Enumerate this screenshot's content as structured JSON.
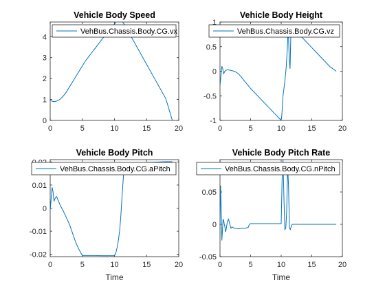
{
  "chart_data": [
    {
      "type": "line",
      "title": "Vehicle Body Speed",
      "xlabel": "",
      "ylabel": "",
      "xlim": [
        0,
        20
      ],
      "ylim": [
        0,
        4.7
      ],
      "xticks": [
        0,
        5,
        10,
        15,
        20
      ],
      "xticklabels": [
        "0",
        "5",
        "10",
        "15",
        "20"
      ],
      "yticks": [
        0,
        1,
        2,
        3,
        4
      ],
      "yticklabels": [
        "0",
        "1",
        "2",
        "3",
        "4"
      ],
      "legend_position": "top-right",
      "color": "#0072BD",
      "series": [
        {
          "name": "VehBus.Chassis.Body.CG.vx",
          "x": [
            0,
            0.5,
            1,
            1.5,
            2,
            2.5,
            3,
            3.5,
            4,
            4.5,
            5,
            5.5,
            6,
            6.5,
            7,
            7.5,
            8,
            8.5,
            9,
            9.5,
            10,
            10.3,
            10.6,
            10.9,
            11.2,
            11.5,
            12,
            13,
            14,
            15,
            16,
            17,
            18,
            19
          ],
          "y": [
            0.95,
            0.9,
            0.92,
            1.0,
            1.15,
            1.35,
            1.6,
            1.85,
            2.1,
            2.35,
            2.6,
            2.85,
            3.05,
            3.25,
            3.45,
            3.65,
            3.85,
            4.05,
            4.25,
            4.45,
            4.6,
            4.72,
            4.78,
            4.78,
            4.72,
            4.6,
            4.33,
            3.78,
            3.23,
            2.68,
            2.13,
            1.58,
            1.03,
            0.0
          ]
        }
      ]
    },
    {
      "type": "line",
      "title": "Vehicle Body Height",
      "xlabel": "",
      "ylabel": "",
      "xlim": [
        0,
        20
      ],
      "ylim": [
        -1,
        1
      ],
      "xticks": [
        0,
        5,
        10,
        15,
        20
      ],
      "xticklabels": [
        "0",
        "5",
        "10",
        "15",
        "20"
      ],
      "yticks": [
        -1,
        -0.5,
        0,
        0.5,
        1
      ],
      "yticklabels": [
        "-1",
        "-0.5",
        "0",
        "0.5",
        "1"
      ],
      "legend_position": "top-right",
      "color": "#0072BD",
      "series": [
        {
          "name": "VehBus.Chassis.Body.CG.vz",
          "x": [
            0,
            0.15,
            0.3,
            0.45,
            0.6,
            0.8,
            1.0,
            1.3,
            1.6,
            2.0,
            2.5,
            3.0,
            3.5,
            4.0,
            5.0,
            6.0,
            7.0,
            8.0,
            9.0,
            10.0,
            10.1,
            10.3,
            10.6,
            10.8,
            11.0,
            11.15,
            11.3,
            11.45,
            11.6,
            11.8,
            12.0,
            13.0,
            14.0,
            15.0,
            16.0,
            17.0,
            18.0,
            19.0
          ],
          "y": [
            -0.3,
            -0.1,
            0.1,
            0.05,
            -0.05,
            0.0,
            0.02,
            0.03,
            0.02,
            0.01,
            -0.01,
            -0.05,
            -0.12,
            -0.2,
            -0.35,
            -0.48,
            -0.61,
            -0.74,
            -0.87,
            -1.0,
            -0.9,
            -0.5,
            -0.2,
            0.05,
            0.45,
            0.92,
            0.3,
            0.05,
            0.85,
            0.88,
            0.87,
            0.74,
            0.61,
            0.48,
            0.35,
            0.22,
            0.09,
            0.0
          ]
        }
      ]
    },
    {
      "type": "line",
      "title": "Vehicle Body Pitch",
      "xlabel": "Time",
      "ylabel": "",
      "xlim": [
        0,
        20
      ],
      "ylim": [
        -0.021,
        0.021
      ],
      "xticks": [
        0,
        5,
        10,
        15,
        20
      ],
      "xticklabels": [
        "0",
        "5",
        "10",
        "15",
        "20"
      ],
      "yticks": [
        -0.02,
        -0.01,
        0,
        0.01,
        0.02
      ],
      "yticklabels": [
        "-0.02",
        "-0.01",
        "0",
        "0.01",
        "0.02"
      ],
      "legend_position": "top-right",
      "color": "#0072BD",
      "series": [
        {
          "name": "VehBus.Chassis.Body.CG.aPitch",
          "x": [
            0,
            0.15,
            0.3,
            0.45,
            0.6,
            0.8,
            1.0,
            1.3,
            1.6,
            2.0,
            2.5,
            3.0,
            3.5,
            4.0,
            4.5,
            5.0,
            5.5,
            6.0,
            7.0,
            8.0,
            9.0,
            10.0,
            10.2,
            10.5,
            10.8,
            11.0,
            11.2,
            11.4,
            11.6,
            11.8,
            12,
            13,
            14,
            15,
            16,
            17,
            18,
            19
          ],
          "y": [
            -0.001,
            0.004,
            0.009,
            0.007,
            0.003,
            0.0045,
            0.005,
            0.003,
            0.001,
            -0.001,
            -0.004,
            -0.007,
            -0.011,
            -0.015,
            -0.018,
            -0.0205,
            -0.0205,
            -0.0205,
            -0.0205,
            -0.0206,
            -0.0206,
            -0.0206,
            -0.0195,
            -0.016,
            -0.01,
            -0.003,
            0.006,
            0.014,
            0.019,
            0.0195,
            0.0195,
            0.0196,
            0.0197,
            0.0198,
            0.0199,
            0.02,
            0.0201,
            0.0201
          ]
        }
      ]
    },
    {
      "type": "line",
      "title": "Vehicle Body Pitch Rate",
      "xlabel": "Time",
      "ylabel": "",
      "xlim": [
        0,
        20
      ],
      "ylim": [
        -0.05,
        0.1
      ],
      "xticks": [
        0,
        5,
        10,
        15,
        20
      ],
      "xticklabels": [
        "0",
        "5",
        "10",
        "15",
        "20"
      ],
      "yticks": [
        -0.05,
        0,
        0.05
      ],
      "yticklabels": [
        "-0.05",
        "0",
        "0.05"
      ],
      "legend_position": "top-right",
      "color": "#0072BD",
      "series": [
        {
          "name": "VehBus.Chassis.Body.CG.nPitch",
          "x": [
            0,
            0.1,
            0.2,
            0.3,
            0.4,
            0.5,
            0.6,
            0.7,
            0.8,
            0.9,
            1.0,
            1.2,
            1.4,
            1.6,
            1.8,
            2.0,
            2.3,
            2.6,
            3.0,
            3.5,
            4.0,
            4.6,
            4.8,
            5.0,
            5.5,
            6.0,
            7.0,
            8.0,
            9.0,
            9.8,
            10.0,
            10.15,
            10.3,
            10.45,
            10.6,
            10.75,
            10.9,
            11.05,
            11.2,
            11.35,
            11.5,
            11.65,
            11.8,
            12.0,
            12.5,
            13,
            14,
            15,
            16,
            17,
            18,
            19
          ],
          "y": [
            0.0,
            0.06,
            0.02,
            -0.025,
            -0.01,
            0.008,
            0.006,
            0.0,
            -0.004,
            -0.012,
            -0.008,
            0.004,
            0.008,
            0.0,
            -0.006,
            -0.004,
            -0.006,
            -0.006,
            -0.007,
            -0.006,
            -0.006,
            -0.005,
            0.0,
            0.001,
            0.001,
            0.001,
            0.001,
            0.001,
            0.001,
            0.001,
            0.001,
            0.07,
            0.1,
            0.04,
            -0.008,
            -0.006,
            0.02,
            0.09,
            0.06,
            -0.005,
            -0.008,
            -0.003,
            0.0,
            0.0,
            0.0,
            0.0,
            0.0,
            0.0,
            0.0,
            0.0,
            0.0,
            0.0
          ]
        }
      ]
    }
  ]
}
